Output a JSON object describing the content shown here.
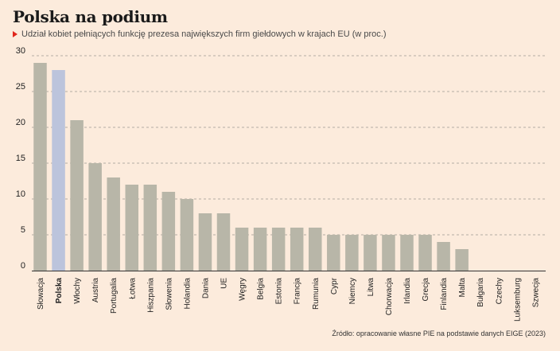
{
  "header": {
    "title": "Polska na podium",
    "subtitle": "Udział kobiet pełniących funkcję prezesa największych firm giełdowych w krajach EU (w proc.)"
  },
  "footer": {
    "source": "Źródło: opracowanie własne PIE na podstawie danych EIGE (2023)"
  },
  "colors": {
    "background": "#fcebdc",
    "bar": "#b8b6a8",
    "highlight_bar": "#bcc4dc",
    "grid": "#b5aca4",
    "marker": "#e0251b"
  },
  "chart_data": {
    "type": "bar",
    "categories": [
      "Słowacja",
      "Polska",
      "Włochy",
      "Austria",
      "Portugalia",
      "Łotwa",
      "Hiszpania",
      "Słowenia",
      "Holandia",
      "Dania",
      "UE",
      "Węgry",
      "Belgia",
      "Estonia",
      "Francja",
      "Rumunia",
      "Cypr",
      "Niemcy",
      "Litwa",
      "Chorwacja",
      "Irlandia",
      "Grecja",
      "Finlandia",
      "Malta",
      "Bułgaria",
      "Czechy",
      "Luksemburg",
      "Szwecja"
    ],
    "values": [
      29,
      28,
      21,
      15,
      13,
      12,
      12,
      11,
      10,
      8,
      8,
      6,
      6,
      6,
      6,
      6,
      5,
      5,
      5,
      5,
      5,
      5,
      4,
      3,
      0,
      0,
      0,
      0
    ],
    "highlight": "Polska",
    "yticks": [
      0,
      5,
      10,
      15,
      20,
      25,
      30
    ],
    "ylim": [
      0,
      30
    ],
    "grid": true,
    "xlabel": "",
    "ylabel": ""
  }
}
